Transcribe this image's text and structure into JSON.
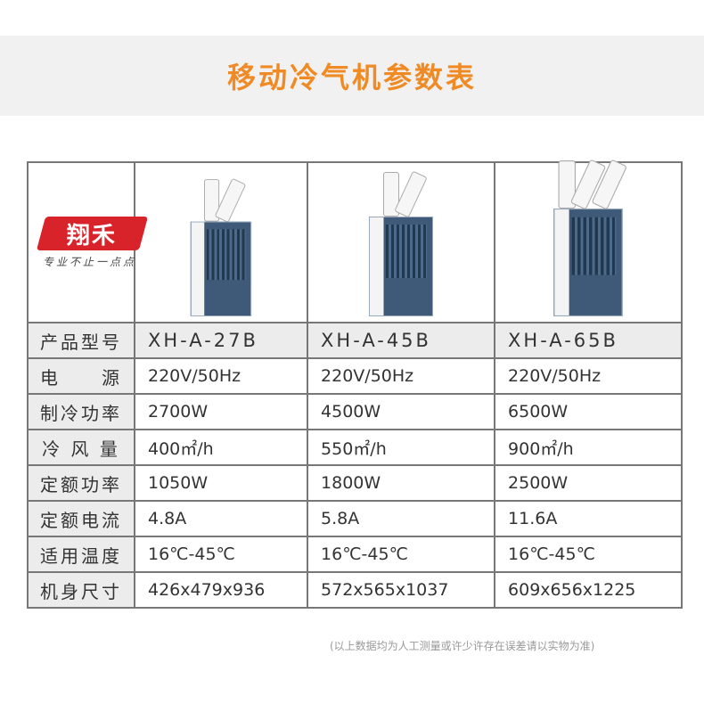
{
  "title": "移动冷气机参数表",
  "brand": {
    "name": "翔禾",
    "slogan": "专业不止一点点",
    "color": "#d9232a"
  },
  "accent": "#f08a24",
  "products": [
    {
      "model": "XH-A-27B",
      "pipes": 2
    },
    {
      "model": "XH-A-45B",
      "pipes": 2
    },
    {
      "model": "XH-A-65B",
      "pipes": 3
    }
  ],
  "model_label": "产品型号",
  "rows": [
    {
      "label": "电　　源",
      "values": [
        "220V/50Hz",
        "220V/50Hz",
        "220V/50Hz"
      ]
    },
    {
      "label": "制冷功率",
      "values": [
        "2700W",
        "4500W",
        "6500W"
      ]
    },
    {
      "label": "冷 风 量",
      "values": [
        "400㎡/h",
        "550㎡/h",
        "900㎡/h"
      ]
    },
    {
      "label": "定额功率",
      "values": [
        "1050W",
        "1800W",
        "2500W"
      ]
    },
    {
      "label": "定额电流",
      "values": [
        "4.8A",
        "5.8A",
        "11.6A"
      ]
    },
    {
      "label": "适用温度",
      "values": [
        "16℃-45℃",
        "16℃-45℃",
        "16℃-45℃"
      ]
    },
    {
      "label": "机身尺寸",
      "values": [
        "426x479x936",
        "572x565x1037",
        "609x656x1225"
      ]
    }
  ],
  "note": "(以上数据均为人工测量或许少许存在误差请以实物为准)"
}
